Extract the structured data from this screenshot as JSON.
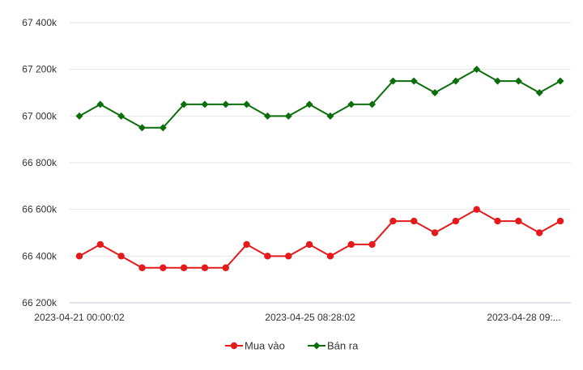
{
  "chart_data": {
    "type": "line",
    "x_labels": [
      "2023-04-21 00:00:02",
      "2023-04-25 08:28:02",
      "2023-04-28 09:..."
    ],
    "y_ticks": [
      "66 200k",
      "66 400k",
      "66 600k",
      "66 800k",
      "67 000k",
      "67 200k",
      "67 400k"
    ],
    "ylim": [
      66200,
      67400
    ],
    "legend_position": "bottom-center",
    "grid": "horizontal",
    "series": [
      {
        "name": "Mua vào",
        "color": "#e41a1c",
        "marker": "circle",
        "values": [
          66400,
          66450,
          66400,
          66350,
          66350,
          66350,
          66350,
          66350,
          66450,
          66400,
          66400,
          66450,
          66400,
          66450,
          66450,
          66550,
          66550,
          66500,
          66550,
          66600,
          66550,
          66550,
          66500,
          66550
        ]
      },
      {
        "name": "Bán ra",
        "color": "#0b6e0b",
        "marker": "diamond",
        "values": [
          67000,
          67050,
          67000,
          66950,
          66950,
          67050,
          67050,
          67050,
          67050,
          67000,
          67000,
          67050,
          67000,
          67050,
          67050,
          67150,
          67150,
          67100,
          67150,
          67200,
          67150,
          67150,
          67100,
          67150
        ]
      }
    ]
  }
}
